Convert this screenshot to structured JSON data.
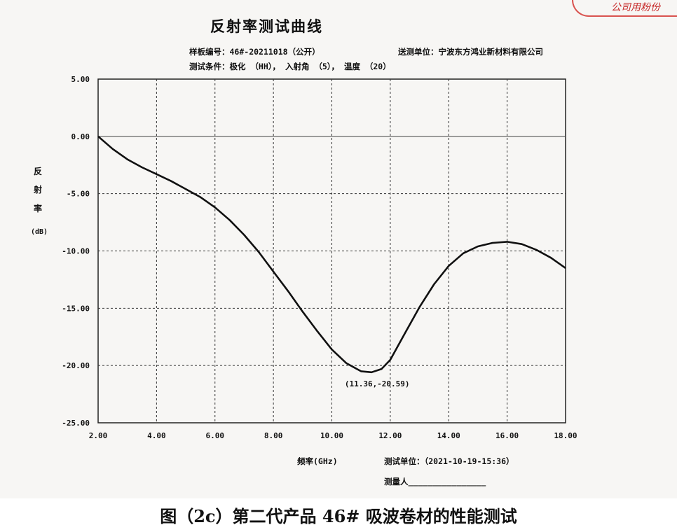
{
  "stamp": "公司用粉份",
  "caption": "图（2c）第二代产品 46# 吸波卷材的性能测试",
  "chart_data": {
    "type": "line",
    "title": "反射率测试曲线",
    "header": {
      "sample_no": "样板编号：46#-20211018（公开）",
      "unit": "送测单位：宁波东方鸿业新材料有限公司",
      "conditions": "测试条件：极化 （HH）， 入射角 （5）， 温度 （20）"
    },
    "ylabel_chars": [
      "反",
      "射",
      "率",
      "(dB)"
    ],
    "xlabel": "频率(GHz)",
    "test_unit_time": "测试单位：（2021-10-19-15:36）",
    "tester": "测量人________________",
    "xlim": [
      2,
      18
    ],
    "ylim": [
      -25,
      5
    ],
    "xticks": [
      "2.00",
      "4.00",
      "6.00",
      "8.00",
      "10.00",
      "12.00",
      "14.00",
      "16.00",
      "18.00"
    ],
    "yticks": [
      "5.00",
      "0.00",
      "-5.00",
      "-10.00",
      "-15.00",
      "-20.00",
      "-25.00"
    ],
    "xtick_values": [
      2,
      4,
      6,
      8,
      10,
      12,
      14,
      16,
      18
    ],
    "ytick_values": [
      5,
      0,
      -5,
      -10,
      -15,
      -20,
      -25
    ],
    "grid": true,
    "zero_line": true,
    "series": [
      {
        "x": [
          2,
          2.5,
          3,
          3.5,
          4,
          4.5,
          5,
          5.5,
          6,
          6.5,
          7,
          7.5,
          8,
          8.5,
          9,
          9.5,
          10,
          10.5,
          11,
          11.36,
          11.7,
          12,
          12.5,
          13,
          13.5,
          14,
          14.5,
          15,
          15.5,
          16,
          16.5,
          17,
          17.5,
          18
        ],
        "y": [
          0,
          -1.1,
          -2.0,
          -2.7,
          -3.3,
          -3.9,
          -4.6,
          -5.3,
          -6.2,
          -7.3,
          -8.6,
          -10.1,
          -11.8,
          -13.5,
          -15.3,
          -17.0,
          -18.6,
          -19.8,
          -20.5,
          -20.59,
          -20.3,
          -19.5,
          -17.2,
          -14.9,
          -12.9,
          -11.3,
          -10.2,
          -9.6,
          -9.3,
          -9.2,
          -9.4,
          -9.9,
          -10.6,
          -11.5
        ]
      }
    ],
    "annotation": {
      "text": "(11.36,-20.59)",
      "x": 11.36,
      "y": -20.59
    }
  }
}
